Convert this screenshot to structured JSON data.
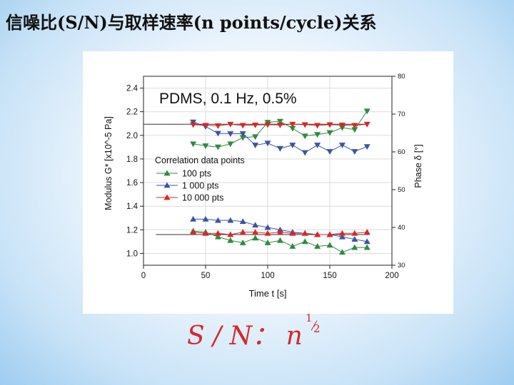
{
  "slide": {
    "title": "信噪比(S/N)与取样速率(n points/cycle)关系",
    "formula_main": "S / N： n",
    "formula_exp_num": "1",
    "formula_exp_den": "2",
    "formula_color": "#d62828"
  },
  "chart_data": {
    "type": "line",
    "title": "PDMS, 0.1 Hz, 0.5%",
    "xlabel": "Time t [s]",
    "ylabel": "Modulus G* [x10^-5 Pa]",
    "ylabel_right": "Phase δ [°]",
    "xlim": [
      0,
      200
    ],
    "ylim": [
      0.9,
      2.5
    ],
    "ylim_right": [
      30,
      80
    ],
    "x_ticks": [
      "0",
      "50",
      "100",
      "150",
      "200"
    ],
    "y_ticks": [
      "1.0",
      "1.2",
      "1.4",
      "1.6",
      "1.8",
      "2.0",
      "2.2",
      "2.4"
    ],
    "y_ticks_right": [
      "30",
      "40",
      "50",
      "60",
      "70",
      "80"
    ],
    "legend_title": "Correlation data points",
    "legend_position": "center-left",
    "reference_lines": [
      {
        "axis": "phase",
        "value": 67.3,
        "x": [
          0,
          178
        ]
      },
      {
        "axis": "modulus",
        "value": 1.16,
        "x": [
          10,
          182
        ]
      }
    ],
    "series": [
      {
        "name": "100 pts",
        "color": "#2e8b3e",
        "marker": "triangle-up",
        "quantity": "modulus",
        "x": [
          40,
          50,
          60,
          70,
          80,
          90,
          100,
          110,
          120,
          130,
          140,
          150,
          160,
          170,
          180
        ],
        "y": [
          1.19,
          1.18,
          1.14,
          1.11,
          1.09,
          1.13,
          1.09,
          1.11,
          1.06,
          1.1,
          1.06,
          1.07,
          1.01,
          1.05,
          1.05
        ]
      },
      {
        "name": "100 pts",
        "color": "#2e8b3e",
        "marker": "triangle-down",
        "quantity": "phase",
        "x": [
          40,
          50,
          60,
          70,
          80,
          90,
          100,
          110,
          120,
          130,
          140,
          150,
          160,
          170,
          180
        ],
        "y": [
          62.1,
          61.6,
          61.3,
          62.1,
          63.8,
          64.0,
          67.8,
          68.1,
          66.2,
          64.2,
          64.6,
          65.1,
          66.4,
          65.9,
          70.8
        ]
      },
      {
        "name": "1 000 pts",
        "color": "#3a55a4",
        "marker": "triangle-up",
        "quantity": "modulus",
        "x": [
          40,
          50,
          60,
          70,
          80,
          90,
          100,
          110,
          120,
          130,
          140,
          150,
          160,
          170,
          180
        ],
        "y": [
          1.29,
          1.29,
          1.28,
          1.28,
          1.27,
          1.24,
          1.22,
          1.2,
          1.18,
          1.17,
          1.16,
          1.16,
          1.14,
          1.12,
          1.1
        ]
      },
      {
        "name": "1 000 pts",
        "color": "#3a55a4",
        "marker": "triangle-down",
        "quantity": "phase",
        "x": [
          40,
          50,
          60,
          70,
          80,
          90,
          100,
          110,
          120,
          130,
          140,
          150,
          160,
          170,
          180
        ],
        "y": [
          67.9,
          66.7,
          64.9,
          64.8,
          64.8,
          61.8,
          62.3,
          60.9,
          61.8,
          59.8,
          61.8,
          60.1,
          61.8,
          60.1,
          61.4
        ]
      },
      {
        "name": "10 000 pts",
        "color": "#d62828",
        "marker": "triangle-up",
        "quantity": "modulus",
        "x": [
          40,
          50,
          60,
          70,
          80,
          90,
          100,
          110,
          120,
          130,
          140,
          150,
          160,
          170,
          180
        ],
        "y": [
          1.18,
          1.17,
          1.17,
          1.16,
          1.18,
          1.18,
          1.17,
          1.18,
          1.17,
          1.17,
          1.16,
          1.16,
          1.17,
          1.17,
          1.18
        ]
      },
      {
        "name": "10 000 pts",
        "color": "#d62828",
        "marker": "triangle-down",
        "quantity": "phase",
        "x": [
          40,
          50,
          60,
          70,
          80,
          90,
          100,
          110,
          120,
          130,
          140,
          150,
          160,
          170,
          180
        ],
        "y": [
          67.2,
          67.0,
          66.9,
          67.3,
          67.0,
          67.1,
          67.2,
          67.1,
          67.3,
          67.2,
          67.0,
          67.2,
          67.1,
          67.0,
          67.3
        ]
      }
    ]
  }
}
